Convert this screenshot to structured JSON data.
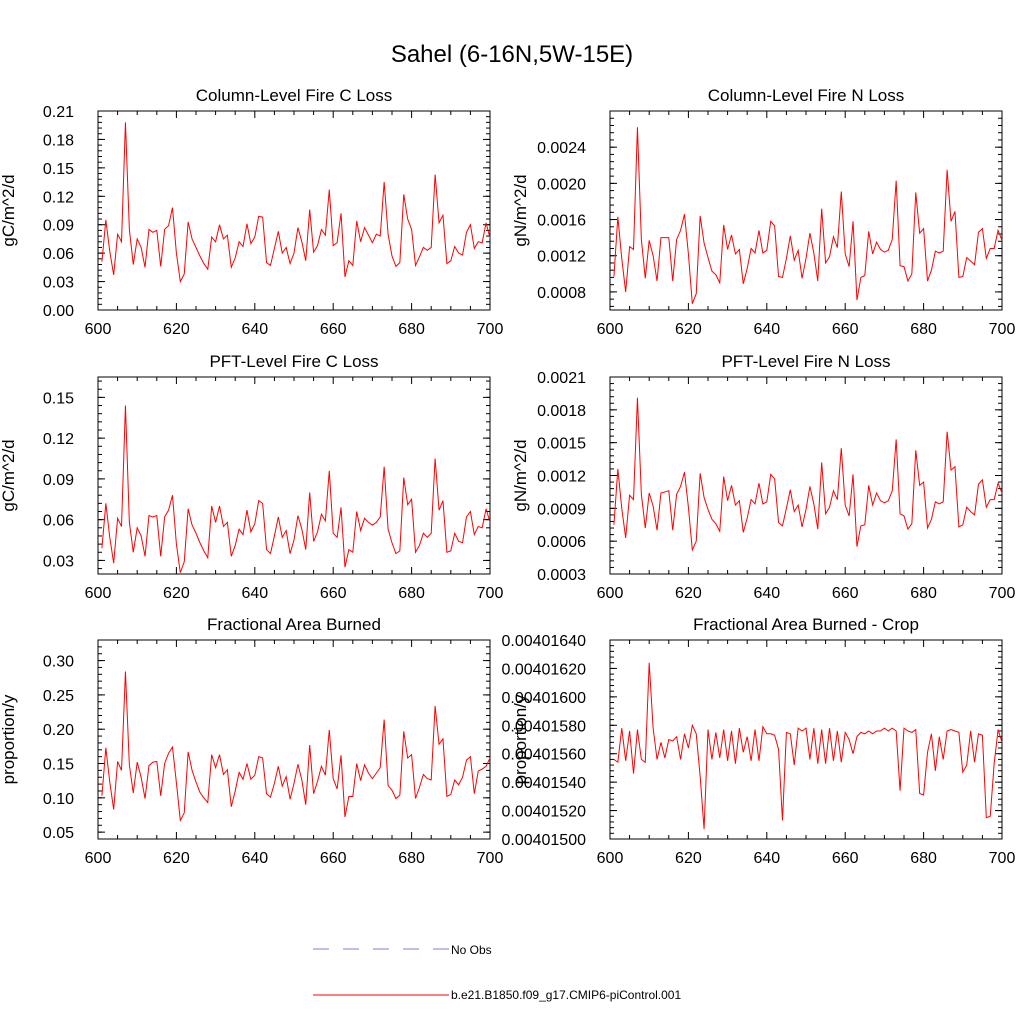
{
  "figure_title": "Sahel (6-16N,5W-15E)",
  "legend": [
    {
      "label": "No Obs",
      "style": "dashed",
      "color": "#7b83c9"
    },
    {
      "label": "b.e21.B1850.f09_g17.CMIP6-piControl.001",
      "style": "solid",
      "color": "#ff0000"
    }
  ],
  "chart_data": [
    {
      "id": "col-c",
      "type": "line",
      "title": "Column-Level Fire C Loss",
      "ylabel": "gC/m^2/d",
      "xlim": [
        600,
        700
      ],
      "ylim": [
        0,
        0.21
      ],
      "xticks": [
        600,
        620,
        640,
        660,
        680,
        700
      ],
      "yticks": [
        0.0,
        0.03,
        0.06,
        0.09,
        0.12,
        0.15,
        0.18,
        0.21
      ],
      "ytick_labels": [
        "0.00",
        "0.03",
        "0.06",
        "0.09",
        "0.12",
        "0.15",
        "0.18",
        "0.21"
      ],
      "x_start": 601,
      "series": [
        {
          "name": "b.e21.B1850.f09_g17.CMIP6-piControl.001",
          "color": "#ff0000",
          "values": [
            0.051,
            0.095,
            0.062,
            0.037,
            0.08,
            0.072,
            0.198,
            0.085,
            0.048,
            0.075,
            0.066,
            0.045,
            0.085,
            0.082,
            0.084,
            0.046,
            0.085,
            0.089,
            0.108,
            0.06,
            0.03,
            0.038,
            0.093,
            0.075,
            0.066,
            0.057,
            0.049,
            0.043,
            0.077,
            0.072,
            0.09,
            0.075,
            0.079,
            0.045,
            0.055,
            0.072,
            0.067,
            0.091,
            0.07,
            0.077,
            0.099,
            0.098,
            0.05,
            0.047,
            0.065,
            0.083,
            0.06,
            0.066,
            0.049,
            0.06,
            0.087,
            0.072,
            0.052,
            0.106,
            0.061,
            0.068,
            0.085,
            0.079,
            0.127,
            0.068,
            0.071,
            0.102,
            0.035,
            0.052,
            0.047,
            0.094,
            0.072,
            0.087,
            0.079,
            0.071,
            0.08,
            0.078,
            0.135,
            0.08,
            0.057,
            0.046,
            0.05,
            0.122,
            0.096,
            0.085,
            0.047,
            0.056,
            0.066,
            0.063,
            0.066,
            0.143,
            0.092,
            0.1,
            0.049,
            0.052,
            0.067,
            0.06,
            0.058,
            0.082,
            0.09,
            0.065,
            0.072,
            0.071,
            0.092,
            0.076
          ]
        }
      ]
    },
    {
      "id": "col-n",
      "type": "line",
      "title": "Column-Level Fire N Loss",
      "ylabel": "gN/m^2/d",
      "xlim": [
        600,
        700
      ],
      "ylim": [
        0.0006,
        0.0028
      ],
      "xticks": [
        600,
        620,
        640,
        660,
        680,
        700
      ],
      "yticks": [
        0.0008,
        0.0012,
        0.0016,
        0.002,
        0.0024
      ],
      "ytick_labels": [
        "0.0008",
        "0.0012",
        "0.0016",
        "0.0020",
        "0.0024"
      ],
      "x_start": 601,
      "series": [
        {
          "name": "b.e21.B1850.f09_g17.CMIP6-piControl.001",
          "color": "#ff0000",
          "values": [
            0.00097,
            0.00163,
            0.00117,
            0.0008,
            0.0013,
            0.00127,
            0.00262,
            0.00138,
            0.00095,
            0.00137,
            0.0012,
            0.00092,
            0.0014,
            0.0014,
            0.0014,
            0.00092,
            0.00138,
            0.00148,
            0.00166,
            0.00122,
            0.00067,
            0.00078,
            0.00164,
            0.00134,
            0.00118,
            0.00103,
            0.00099,
            0.0009,
            0.00154,
            0.00127,
            0.00143,
            0.00122,
            0.00127,
            0.00089,
            0.00106,
            0.00128,
            0.00123,
            0.00148,
            0.00123,
            0.00126,
            0.00158,
            0.00153,
            0.00097,
            0.00096,
            0.00117,
            0.00142,
            0.00115,
            0.00126,
            0.00095,
            0.00117,
            0.00145,
            0.00123,
            0.00092,
            0.00172,
            0.00112,
            0.00119,
            0.00141,
            0.00129,
            0.00191,
            0.00122,
            0.00108,
            0.00158,
            0.00071,
            0.00096,
            0.00098,
            0.00147,
            0.00122,
            0.00135,
            0.00127,
            0.00124,
            0.00126,
            0.00138,
            0.00203,
            0.00109,
            0.00108,
            0.00092,
            0.001,
            0.0019,
            0.00145,
            0.0015,
            0.00092,
            0.00104,
            0.00125,
            0.00123,
            0.00125,
            0.00215,
            0.00158,
            0.00169,
            0.00096,
            0.00097,
            0.00118,
            0.00114,
            0.0011,
            0.00146,
            0.0015,
            0.00117,
            0.00128,
            0.00128,
            0.00148,
            0.00137
          ]
        }
      ]
    },
    {
      "id": "pft-c",
      "type": "line",
      "title": "PFT-Level Fire C Loss",
      "ylabel": "gC/m^2/d",
      "xlim": [
        600,
        700
      ],
      "ylim": [
        0.02,
        0.165
      ],
      "xticks": [
        600,
        620,
        640,
        660,
        680,
        700
      ],
      "yticks": [
        0.03,
        0.06,
        0.09,
        0.12,
        0.15
      ],
      "ytick_labels": [
        "0.03",
        "0.06",
        "0.09",
        "0.12",
        "0.15"
      ],
      "x_start": 601,
      "series": [
        {
          "name": "b.e21.B1850.f09_g17.CMIP6-piControl.001",
          "color": "#ff0000",
          "values": [
            0.039,
            0.072,
            0.047,
            0.028,
            0.061,
            0.055,
            0.144,
            0.058,
            0.036,
            0.054,
            0.048,
            0.033,
            0.063,
            0.062,
            0.063,
            0.033,
            0.062,
            0.067,
            0.078,
            0.042,
            0.021,
            0.029,
            0.068,
            0.056,
            0.05,
            0.043,
            0.037,
            0.032,
            0.07,
            0.058,
            0.07,
            0.055,
            0.058,
            0.033,
            0.041,
            0.053,
            0.049,
            0.067,
            0.051,
            0.057,
            0.074,
            0.072,
            0.038,
            0.035,
            0.048,
            0.062,
            0.047,
            0.052,
            0.035,
            0.045,
            0.063,
            0.053,
            0.038,
            0.08,
            0.044,
            0.051,
            0.064,
            0.059,
            0.096,
            0.05,
            0.047,
            0.069,
            0.025,
            0.038,
            0.036,
            0.066,
            0.052,
            0.061,
            0.058,
            0.056,
            0.058,
            0.062,
            0.099,
            0.053,
            0.043,
            0.035,
            0.037,
            0.091,
            0.071,
            0.075,
            0.036,
            0.041,
            0.05,
            0.047,
            0.05,
            0.105,
            0.067,
            0.074,
            0.036,
            0.037,
            0.05,
            0.044,
            0.043,
            0.062,
            0.066,
            0.049,
            0.055,
            0.054,
            0.068,
            0.058
          ]
        }
      ]
    },
    {
      "id": "pft-n",
      "type": "line",
      "title": "PFT-Level Fire N Loss",
      "ylabel": "gN/m^2/d",
      "xlim": [
        600,
        700
      ],
      "ylim": [
        0.0003,
        0.0021
      ],
      "xticks": [
        600,
        620,
        640,
        660,
        680,
        700
      ],
      "yticks": [
        0.0003,
        0.0006,
        0.0009,
        0.0012,
        0.0015,
        0.0018,
        0.0021
      ],
      "ytick_labels": [
        "0.0003",
        "0.0006",
        "0.0009",
        "0.0012",
        "0.0015",
        "0.0018",
        "0.0021"
      ],
      "x_start": 601,
      "series": [
        {
          "name": "b.e21.B1850.f09_g17.CMIP6-piControl.001",
          "color": "#ff0000",
          "values": [
            0.00075,
            0.00126,
            0.0009,
            0.00063,
            0.00102,
            0.00098,
            0.00191,
            0.00103,
            0.00072,
            0.00104,
            0.00092,
            0.0007,
            0.00104,
            0.00105,
            0.00106,
            0.0007,
            0.00103,
            0.0011,
            0.00123,
            0.00091,
            0.00052,
            0.0006,
            0.00122,
            0.001,
            0.00089,
            0.0008,
            0.00076,
            0.00069,
            0.00119,
            0.00097,
            0.00111,
            0.00093,
            0.00097,
            0.00068,
            0.00081,
            0.00098,
            0.00094,
            0.00113,
            0.00094,
            0.00096,
            0.00121,
            0.00117,
            0.00077,
            0.00074,
            0.0009,
            0.00107,
            0.00087,
            0.00093,
            0.00073,
            0.00089,
            0.0011,
            0.00094,
            0.00071,
            0.00132,
            0.00085,
            0.00091,
            0.00106,
            0.00098,
            0.00145,
            0.00093,
            0.00083,
            0.00121,
            0.00055,
            0.00074,
            0.00075,
            0.00111,
            0.00093,
            0.00104,
            0.00097,
            0.00095,
            0.00097,
            0.00106,
            0.00153,
            0.00085,
            0.00083,
            0.00071,
            0.00076,
            0.00143,
            0.00111,
            0.00114,
            0.00072,
            0.0008,
            0.00096,
            0.00094,
            0.00096,
            0.0016,
            0.00125,
            0.00128,
            0.00073,
            0.00075,
            0.00091,
            0.00087,
            0.00084,
            0.00112,
            0.00116,
            0.00091,
            0.00098,
            0.00098,
            0.00113,
            0.00104
          ]
        }
      ]
    },
    {
      "id": "area",
      "type": "line",
      "title": "Fractional Area Burned",
      "ylabel": "proportion/y",
      "xlim": [
        600,
        700
      ],
      "ylim": [
        0.04,
        0.33
      ],
      "xticks": [
        600,
        620,
        640,
        660,
        680,
        700
      ],
      "yticks": [
        0.05,
        0.1,
        0.15,
        0.2,
        0.25,
        0.3
      ],
      "ytick_labels": [
        "0.05",
        "0.10",
        "0.15",
        "0.20",
        "0.25",
        "0.30"
      ],
      "x_start": 601,
      "series": [
        {
          "name": "b.e21.B1850.f09_g17.CMIP6-piControl.001",
          "color": "#ff0000",
          "values": [
            0.103,
            0.173,
            0.123,
            0.083,
            0.153,
            0.14,
            0.284,
            0.148,
            0.107,
            0.152,
            0.13,
            0.099,
            0.147,
            0.152,
            0.153,
            0.103,
            0.15,
            0.165,
            0.174,
            0.122,
            0.067,
            0.078,
            0.167,
            0.14,
            0.123,
            0.108,
            0.1,
            0.093,
            0.163,
            0.144,
            0.163,
            0.134,
            0.141,
            0.087,
            0.11,
            0.137,
            0.127,
            0.15,
            0.127,
            0.133,
            0.16,
            0.158,
            0.106,
            0.101,
            0.121,
            0.146,
            0.117,
            0.131,
            0.098,
            0.121,
            0.149,
            0.126,
            0.09,
            0.177,
            0.106,
            0.124,
            0.146,
            0.133,
            0.199,
            0.128,
            0.113,
            0.162,
            0.072,
            0.102,
            0.102,
            0.15,
            0.125,
            0.148,
            0.136,
            0.128,
            0.136,
            0.144,
            0.214,
            0.118,
            0.111,
            0.099,
            0.104,
            0.197,
            0.158,
            0.163,
            0.099,
            0.115,
            0.134,
            0.128,
            0.126,
            0.234,
            0.178,
            0.186,
            0.102,
            0.105,
            0.126,
            0.119,
            0.13,
            0.155,
            0.16,
            0.106,
            0.139,
            0.142,
            0.146,
            0.158
          ]
        }
      ]
    },
    {
      "id": "crop",
      "type": "line",
      "title": "Fractional Area Burned - Crop",
      "ylabel": "proportion/y",
      "xlim": [
        600,
        700
      ],
      "ylim": [
        0.004015,
        0.0040164
      ],
      "xticks": [
        600,
        620,
        640,
        660,
        680,
        700
      ],
      "yticks": [
        0.004015,
        0.0040152,
        0.0040154,
        0.0040156,
        0.0040158,
        0.004016,
        0.0040162,
        0.0040164
      ],
      "ytick_labels": [
        "0.00401500",
        "0.00401520",
        "0.00401540",
        "0.00401560",
        "0.00401580",
        "0.00401600",
        "0.00401620",
        "0.00401640"
      ],
      "x_start": 601,
      "series": [
        {
          "name": "b.e21.B1850.f09_g17.CMIP6-piControl.001",
          "color": "#ff0000",
          "values": [
            0.00401556,
            0.00401554,
            0.00401578,
            0.00401555,
            0.00401576,
            0.00401546,
            0.00401577,
            0.00401556,
            0.00401554,
            0.00401624,
            0.00401578,
            0.00401556,
            0.00401568,
            0.00401557,
            0.0040157,
            0.00401569,
            0.00401572,
            0.00401556,
            0.00401574,
            0.00401564,
            0.0040158,
            0.00401574,
            0.00401544,
            0.00401507,
            0.00401577,
            0.00401556,
            0.00401575,
            0.00401557,
            0.00401577,
            0.00401555,
            0.00401576,
            0.00401553,
            0.00401578,
            0.00401561,
            0.00401572,
            0.00401555,
            0.00401577,
            0.00401555,
            0.00401579,
            0.00401574,
            0.00401574,
            0.00401573,
            0.00401563,
            0.00401513,
            0.00401575,
            0.00401574,
            0.00401552,
            0.00401578,
            0.00401576,
            0.00401578,
            0.00401556,
            0.00401578,
            0.00401553,
            0.00401577,
            0.00401553,
            0.00401578,
            0.00401555,
            0.00401576,
            0.00401554,
            0.00401575,
            0.0040157,
            0.0040156,
            0.00401572,
            0.00401575,
            0.00401574,
            0.00401576,
            0.00401574,
            0.00401576,
            0.00401576,
            0.00401578,
            0.00401576,
            0.00401578,
            0.00401576,
            0.00401534,
            0.00401578,
            0.00401576,
            0.00401575,
            0.00401577,
            0.00401532,
            0.00401531,
            0.00401561,
            0.00401574,
            0.00401548,
            0.00401572,
            0.00401556,
            0.00401576,
            0.00401577,
            0.00401576,
            0.00401575,
            0.00401547,
            0.00401552,
            0.00401576,
            0.00401554,
            0.00401574,
            0.00401573,
            0.00401515,
            0.00401516,
            0.00401553,
            0.00401577,
            0.00401568
          ]
        }
      ]
    }
  ]
}
